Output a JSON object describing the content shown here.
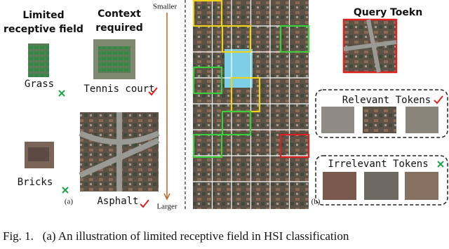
{
  "panel_a": {
    "left_title": [
      "Limited",
      "receptive field"
    ],
    "center_title": [
      "Context",
      "required"
    ],
    "scale": {
      "top": "Smaller",
      "bottom": "Larger"
    },
    "samples": {
      "grass": "Grass",
      "tennis": "Tennis court",
      "bricks": "Bricks",
      "asphalt": "Asphalt"
    },
    "label": "(a)"
  },
  "panel_b": {
    "query": "Query Toekn",
    "relevant": "Relevant Tokens",
    "irrelevant": "Irrelevant Tokens",
    "label": "(b)"
  },
  "caption": "Fig. 1.   (a) An illustration of limited receptive field in HSI classification"
}
